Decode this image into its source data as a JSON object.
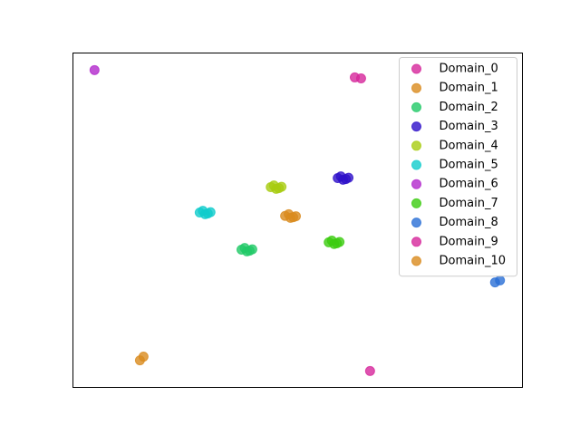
{
  "chart_data": {
    "type": "scatter",
    "xlim": [
      0,
      100
    ],
    "ylim": [
      0,
      100
    ],
    "legend": "upper right",
    "alpha": 0.8,
    "series": [
      {
        "name": "Domain_0",
        "color": "#d6279b",
        "x": [
          62.7,
          64.1
        ],
        "y": [
          92.7,
          92.4
        ]
      },
      {
        "name": "Domain_1",
        "color": "#d98b1e",
        "x": [
          47.2,
          48.4,
          49.6,
          48.0,
          49.0
        ],
        "y": [
          51.3,
          50.7,
          51.2,
          51.8,
          50.9
        ]
      },
      {
        "name": "Domain_2",
        "color": "#22c968",
        "x": [
          37.5,
          38.7,
          39.9,
          38.2,
          39.3
        ],
        "y": [
          41.2,
          40.7,
          41.3,
          41.7,
          40.9
        ]
      },
      {
        "name": "Domain_3",
        "color": "#2e10c9",
        "x": [
          58.9,
          60.1,
          61.3,
          59.6,
          60.7
        ],
        "y": [
          62.6,
          62.1,
          62.7,
          63.1,
          62.3
        ]
      },
      {
        "name": "Domain_4",
        "color": "#a8cc10",
        "x": [
          44.0,
          45.2,
          46.4,
          44.7,
          45.8
        ],
        "y": [
          59.9,
          59.4,
          60.0,
          60.4,
          59.6
        ]
      },
      {
        "name": "Domain_5",
        "color": "#10cccc",
        "x": [
          28.2,
          29.4,
          30.6,
          28.9,
          30.0
        ],
        "y": [
          52.3,
          51.8,
          52.4,
          52.8,
          52.0
        ]
      },
      {
        "name": "Domain_6",
        "color": "#b228cc",
        "x": [
          4.8
        ],
        "y": [
          94.9
        ]
      },
      {
        "name": "Domain_7",
        "color": "#3ccc10",
        "x": [
          56.9,
          58.1,
          59.3,
          57.6,
          58.7
        ],
        "y": [
          43.4,
          42.9,
          43.5,
          43.9,
          43.1
        ]
      },
      {
        "name": "Domain_8",
        "color": "#2a6fd6",
        "x": [
          93.9,
          95.0
        ],
        "y": [
          31.4,
          32.0
        ]
      },
      {
        "name": "Domain_9",
        "color": "#d6279b",
        "x": [
          66.1
        ],
        "y": [
          4.9
        ]
      },
      {
        "name": "Domain_10",
        "color": "#d98b1e",
        "x": [
          14.9,
          15.7
        ],
        "y": [
          8.1,
          9.2
        ]
      }
    ]
  }
}
